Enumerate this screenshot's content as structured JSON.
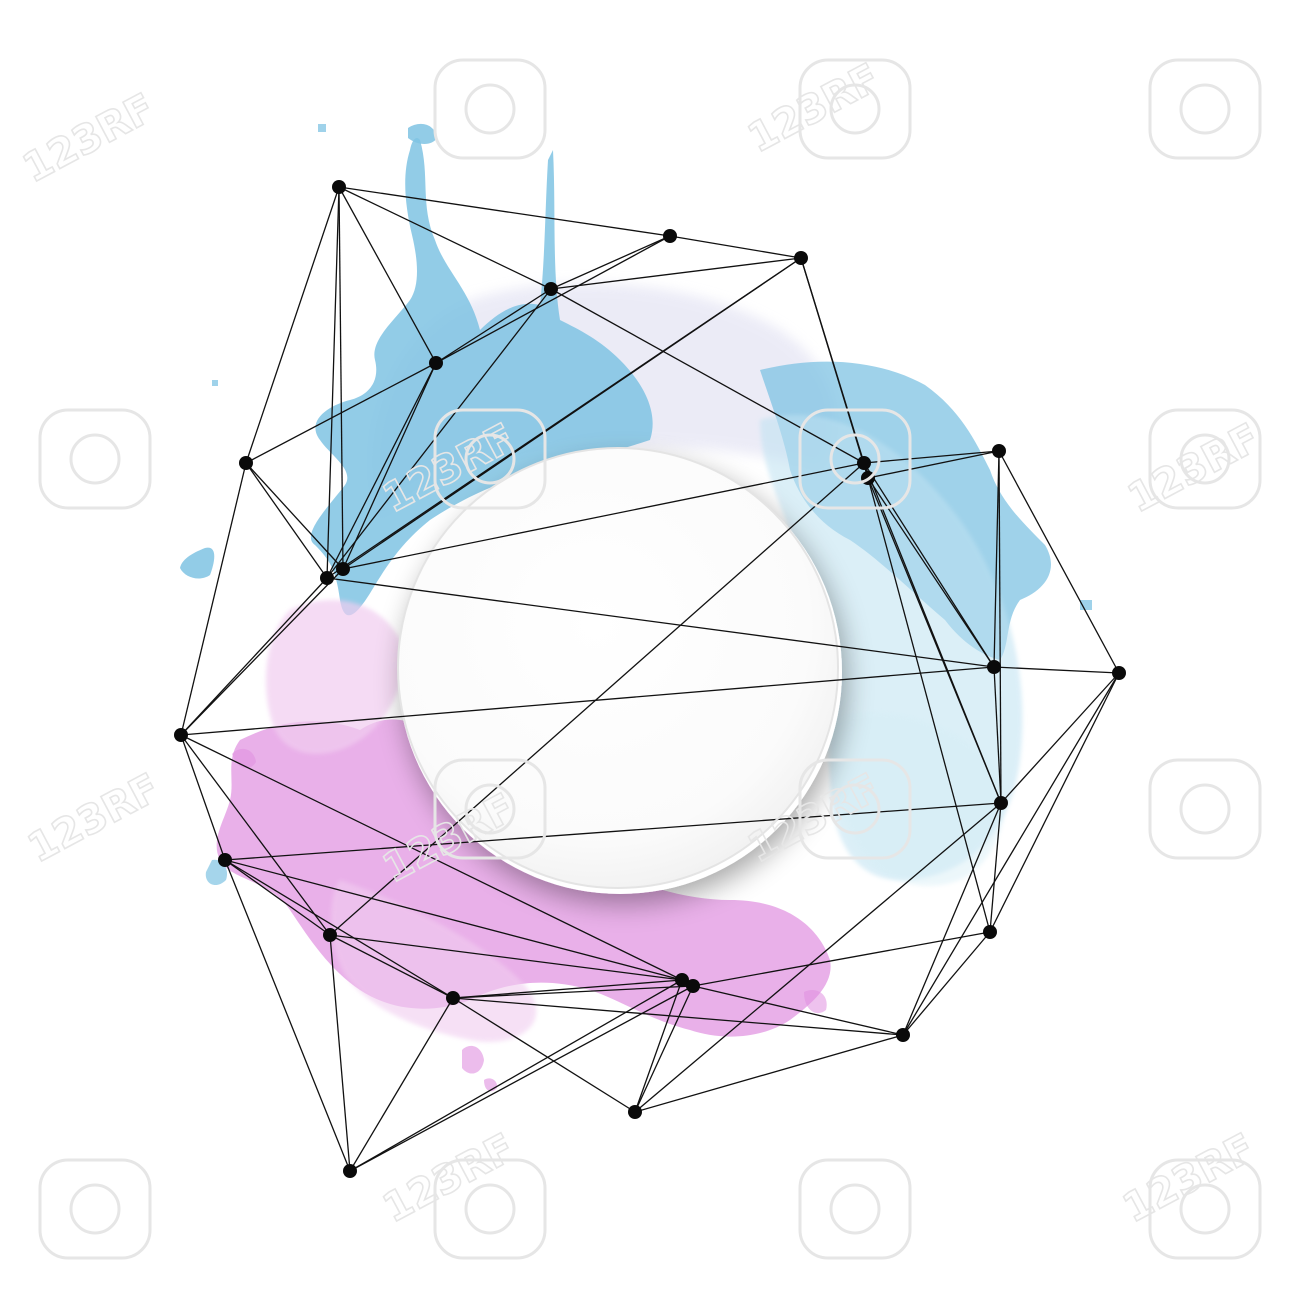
{
  "artwork": {
    "subject": "",
    "colors": {
      "background": "#ffffff",
      "splash_blue": "#7fc3e3",
      "splash_blue_light": "#bfe2f2",
      "splash_pink": "#e08fe0",
      "splash_pink_light": "#f1cdf0",
      "splash_lavender": "#dcdcf0",
      "line": "#111111",
      "node": "#0a0a0a",
      "disc": "#ffffff",
      "disc_shadow": "#9a9a9a"
    }
  },
  "watermark": {
    "text": "123RF",
    "icon": "camera-aperture-icon",
    "color": "#e6e6e6"
  }
}
